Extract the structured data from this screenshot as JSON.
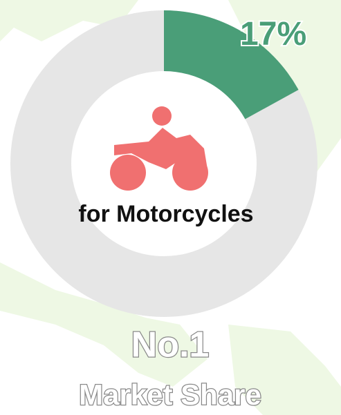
{
  "chart_data": {
    "type": "donut",
    "values": [
      17
    ],
    "value_labels": [
      "17%"
    ],
    "colors": [
      "#4a9e78"
    ],
    "center_label": "for Motorcycles",
    "annotations": [
      "No.1",
      "Market Share"
    ]
  }
}
